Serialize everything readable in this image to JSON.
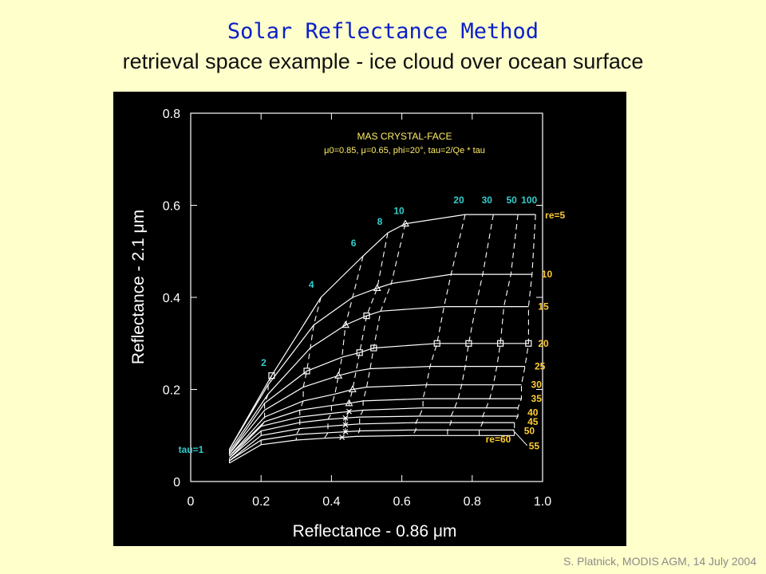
{
  "slide": {
    "title": "Solar Reflectance Method",
    "subtitle": "retrieval space example - ice cloud over ocean surface",
    "credit": "S. Platnick, MODIS AGM, 14 July 2004"
  },
  "chart_data": {
    "type": "line",
    "title": "MAS CRYSTAL-FACE",
    "subtitle": "μ0=0.85, μ=0.65, phi=20°, tau=2/Qe * tau",
    "xlabel": "Reflectance - 0.86 μm",
    "ylabel": "Reflectance - 2.1 μm",
    "xlim": [
      0,
      1.0
    ],
    "ylim": [
      0,
      0.8
    ],
    "xticks": [
      "0",
      "0.2",
      "0.4",
      "0.6",
      "0.8",
      "1.0"
    ],
    "yticks": [
      "0",
      "0.2",
      "0.4",
      "0.6",
      "0.8"
    ],
    "grid": false,
    "colors": {
      "background": "#000000",
      "axes": "#ffffff",
      "title": "#ffee66",
      "tau_label": "#33cccc",
      "re_label": "#ffcc33"
    },
    "tau_values": [
      1,
      2,
      4,
      6,
      8,
      10,
      20,
      30,
      50,
      100
    ],
    "tau_labels": [
      "tau=1",
      "2",
      "4",
      "6",
      "8",
      "10",
      "20",
      "30",
      "50",
      "100"
    ],
    "re_values": [
      5,
      10,
      15,
      20,
      25,
      30,
      35,
      40,
      45,
      50,
      55,
      60
    ],
    "re_labels": [
      "re=5",
      "10",
      "15",
      "20",
      "25",
      "30",
      "35",
      "40",
      "45",
      "50",
      "55",
      "re=60"
    ],
    "series": [
      {
        "name": "re=5",
        "x": [
          0.11,
          0.23,
          0.37,
          0.49,
          0.56,
          0.61,
          0.78,
          0.86,
          0.93,
          0.98
        ],
        "y": [
          0.07,
          0.23,
          0.4,
          0.49,
          0.54,
          0.56,
          0.58,
          0.58,
          0.58,
          0.58
        ]
      },
      {
        "name": "re=10",
        "x": [
          0.11,
          0.22,
          0.35,
          0.46,
          0.53,
          0.57,
          0.74,
          0.83,
          0.91,
          0.97
        ],
        "y": [
          0.07,
          0.21,
          0.34,
          0.4,
          0.42,
          0.43,
          0.45,
          0.45,
          0.45,
          0.45
        ]
      },
      {
        "name": "re=15",
        "x": [
          0.11,
          0.22,
          0.34,
          0.44,
          0.5,
          0.54,
          0.72,
          0.81,
          0.89,
          0.96
        ],
        "y": [
          0.065,
          0.19,
          0.29,
          0.34,
          0.36,
          0.37,
          0.38,
          0.38,
          0.38,
          0.38
        ]
      },
      {
        "name": "re=20",
        "x": [
          0.11,
          0.21,
          0.33,
          0.43,
          0.48,
          0.52,
          0.7,
          0.79,
          0.88,
          0.96
        ],
        "y": [
          0.06,
          0.17,
          0.24,
          0.27,
          0.28,
          0.29,
          0.3,
          0.3,
          0.3,
          0.3
        ]
      },
      {
        "name": "re=25",
        "x": [
          0.11,
          0.21,
          0.32,
          0.42,
          0.47,
          0.51,
          0.68,
          0.78,
          0.87,
          0.95
        ],
        "y": [
          0.06,
          0.155,
          0.205,
          0.23,
          0.24,
          0.245,
          0.25,
          0.25,
          0.25,
          0.25
        ]
      },
      {
        "name": "re=30",
        "x": [
          0.11,
          0.21,
          0.32,
          0.41,
          0.46,
          0.5,
          0.67,
          0.77,
          0.86,
          0.94
        ],
        "y": [
          0.055,
          0.14,
          0.175,
          0.19,
          0.2,
          0.205,
          0.21,
          0.21,
          0.21,
          0.21
        ]
      },
      {
        "name": "re=35",
        "x": [
          0.11,
          0.21,
          0.31,
          0.4,
          0.45,
          0.49,
          0.66,
          0.76,
          0.85,
          0.94
        ],
        "y": [
          0.055,
          0.13,
          0.155,
          0.165,
          0.17,
          0.175,
          0.18,
          0.18,
          0.18,
          0.18
        ]
      },
      {
        "name": "re=40",
        "x": [
          0.11,
          0.2,
          0.31,
          0.4,
          0.45,
          0.49,
          0.66,
          0.75,
          0.84,
          0.93
        ],
        "y": [
          0.05,
          0.12,
          0.14,
          0.148,
          0.152,
          0.155,
          0.16,
          0.16,
          0.16,
          0.16
        ]
      },
      {
        "name": "re=45",
        "x": [
          0.11,
          0.2,
          0.31,
          0.39,
          0.44,
          0.48,
          0.65,
          0.74,
          0.83,
          0.93
        ],
        "y": [
          0.05,
          0.11,
          0.128,
          0.135,
          0.138,
          0.14,
          0.142,
          0.142,
          0.142,
          0.142
        ]
      },
      {
        "name": "re=50",
        "x": [
          0.11,
          0.2,
          0.31,
          0.39,
          0.44,
          0.48,
          0.64,
          0.74,
          0.83,
          0.92
        ],
        "y": [
          0.045,
          0.1,
          0.115,
          0.12,
          0.123,
          0.125,
          0.128,
          0.128,
          0.128,
          0.128
        ]
      },
      {
        "name": "re=55",
        "x": [
          0.11,
          0.2,
          0.3,
          0.39,
          0.44,
          0.48,
          0.64,
          0.73,
          0.82,
          0.92
        ],
        "y": [
          0.045,
          0.09,
          0.102,
          0.106,
          0.108,
          0.11,
          0.112,
          0.112,
          0.112,
          0.112
        ]
      },
      {
        "name": "re=60",
        "x": [
          0.11,
          0.2,
          0.3,
          0.38,
          0.43,
          0.47,
          0.63,
          0.73,
          0.82,
          0.92
        ],
        "y": [
          0.04,
          0.08,
          0.09,
          0.094,
          0.096,
          0.098,
          0.1,
          0.1,
          0.1,
          0.1
        ]
      }
    ],
    "markers": [
      {
        "re": 5,
        "tau_index": 5,
        "symbol": "triangle"
      },
      {
        "re": 10,
        "tau_index": 4,
        "symbol": "triangle"
      },
      {
        "re": 15,
        "tau_index": 3,
        "symbol": "triangle"
      },
      {
        "re": 25,
        "tau_index": 3,
        "symbol": "triangle"
      },
      {
        "re": 30,
        "tau_index": 4,
        "symbol": "triangle"
      },
      {
        "re": 35,
        "tau_index": 4,
        "symbol": "triangle"
      },
      {
        "re": 5,
        "tau_index": 1,
        "symbol": "square"
      },
      {
        "re": 20,
        "tau_index": 2,
        "symbol": "square"
      },
      {
        "re": 15,
        "tau_index": 4,
        "symbol": "square"
      },
      {
        "re": 20,
        "tau_index": 4,
        "symbol": "square"
      },
      {
        "re": 20,
        "tau_index": 5,
        "symbol": "square"
      },
      {
        "re": 20,
        "tau_index": 6,
        "symbol": "square"
      },
      {
        "re": 20,
        "tau_index": 7,
        "symbol": "square"
      },
      {
        "re": 20,
        "tau_index": 8,
        "symbol": "square"
      },
      {
        "re": 20,
        "tau_index": 9,
        "symbol": "square"
      },
      {
        "re": 40,
        "tau_index": 4,
        "symbol": "cross"
      },
      {
        "re": 45,
        "tau_index": 4,
        "symbol": "cross"
      },
      {
        "re": 50,
        "tau_index": 4,
        "symbol": "cross"
      },
      {
        "re": 55,
        "tau_index": 4,
        "symbol": "cross"
      },
      {
        "re": 60,
        "tau_index": 4,
        "symbol": "cross"
      }
    ]
  }
}
